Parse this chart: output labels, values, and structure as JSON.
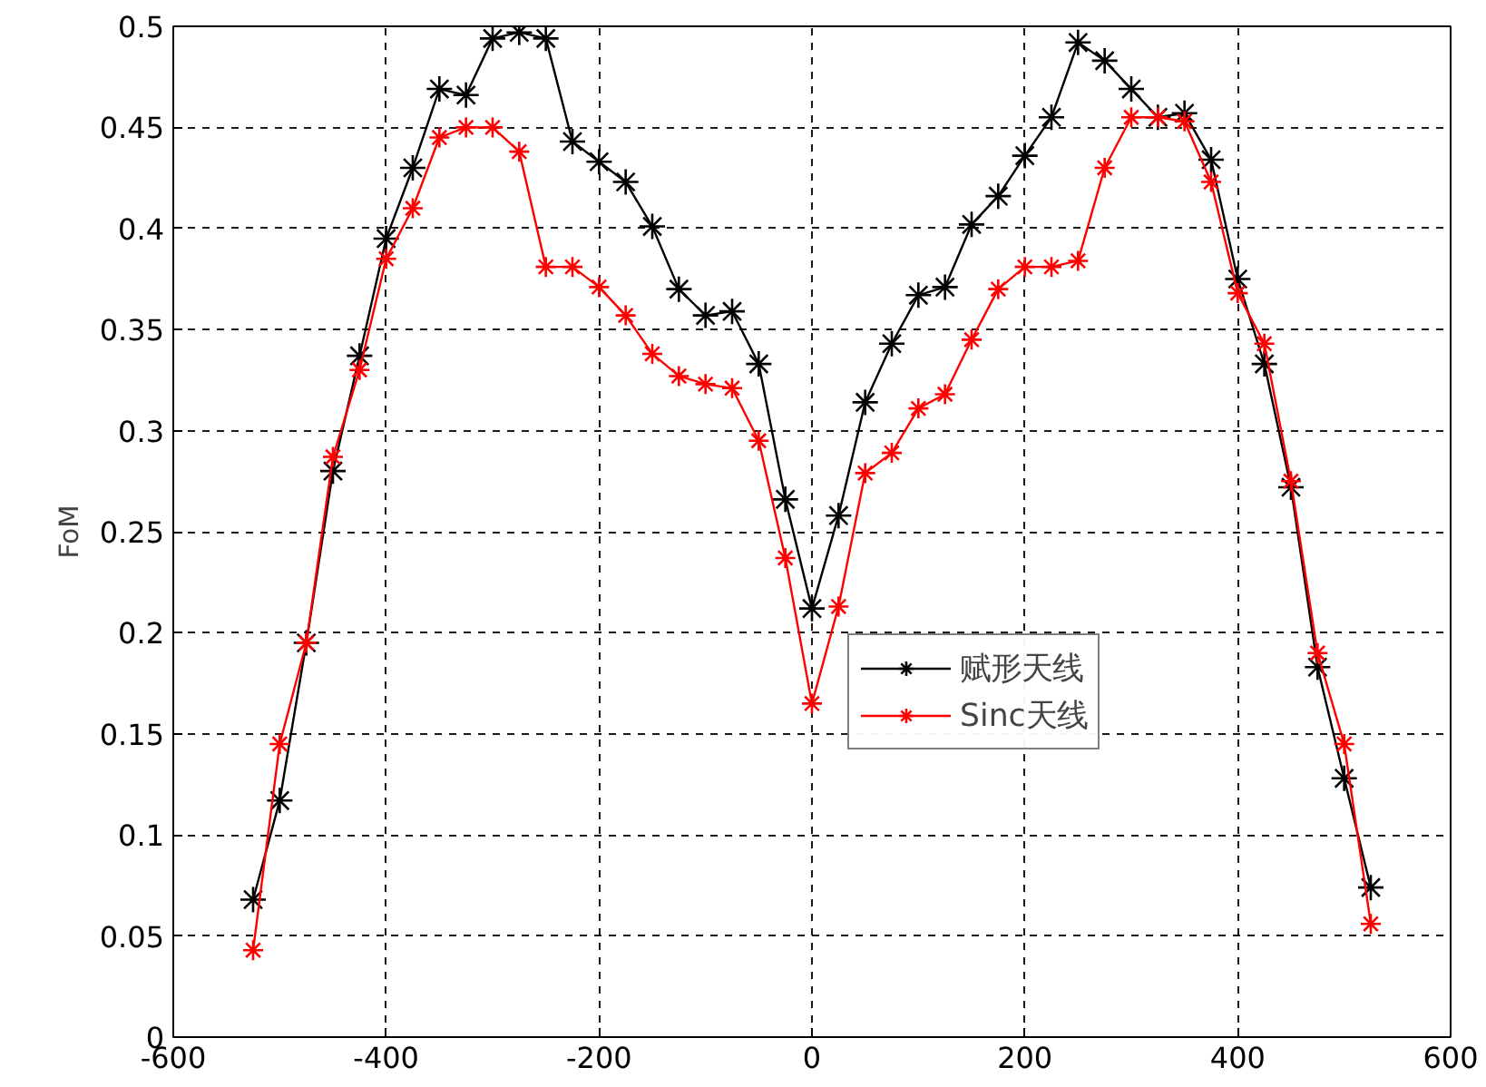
{
  "chart_data": {
    "type": "line",
    "ylabel": "FoM",
    "x": [
      -525,
      -500,
      -475,
      -450,
      -425,
      -400,
      -375,
      -350,
      -325,
      -300,
      -275,
      -250,
      -225,
      -200,
      -175,
      -150,
      -125,
      -100,
      -75,
      -50,
      -25,
      0,
      25,
      50,
      75,
      100,
      125,
      150,
      175,
      200,
      225,
      250,
      275,
      300,
      325,
      350,
      375,
      400,
      425,
      450,
      475,
      500,
      525
    ],
    "series": [
      {
        "name": "赋形天线",
        "color": "#000000",
        "values": [
          0.068,
          0.117,
          0.195,
          0.28,
          0.337,
          0.395,
          0.43,
          0.469,
          0.466,
          0.494,
          0.497,
          0.494,
          0.443,
          0.433,
          0.423,
          0.401,
          0.37,
          0.357,
          0.359,
          0.333,
          0.266,
          0.212,
          0.258,
          0.314,
          0.343,
          0.367,
          0.371,
          0.402,
          0.416,
          0.436,
          0.455,
          0.492,
          0.483,
          0.469,
          0.455,
          0.457,
          0.434,
          0.375,
          0.333,
          0.272,
          0.183,
          0.128,
          0.074
        ]
      },
      {
        "name": "Sinc天线",
        "color": "#ff0000",
        "values": [
          0.043,
          0.145,
          0.195,
          0.287,
          0.33,
          0.385,
          0.41,
          0.445,
          0.45,
          0.45,
          0.438,
          0.381,
          0.381,
          0.371,
          0.357,
          0.338,
          0.327,
          0.323,
          0.321,
          0.295,
          0.237,
          0.165,
          0.213,
          0.279,
          0.289,
          0.311,
          0.318,
          0.345,
          0.37,
          0.381,
          0.381,
          0.384,
          0.43,
          0.455,
          0.455,
          0.453,
          0.423,
          0.368,
          0.343,
          0.275,
          0.19,
          0.145,
          0.056
        ]
      }
    ],
    "xlim": [
      -600,
      600
    ],
    "xticks": [
      -600,
      -400,
      -200,
      0,
      200,
      400,
      600
    ],
    "ylim": [
      0,
      0.5
    ],
    "yticks": [
      0,
      0.05,
      0.1,
      0.15,
      0.2,
      0.25,
      0.3,
      0.35,
      0.4,
      0.45,
      0.5
    ],
    "grid": true,
    "legend": "center",
    "marker": "cross",
    "line_style": "solid"
  }
}
